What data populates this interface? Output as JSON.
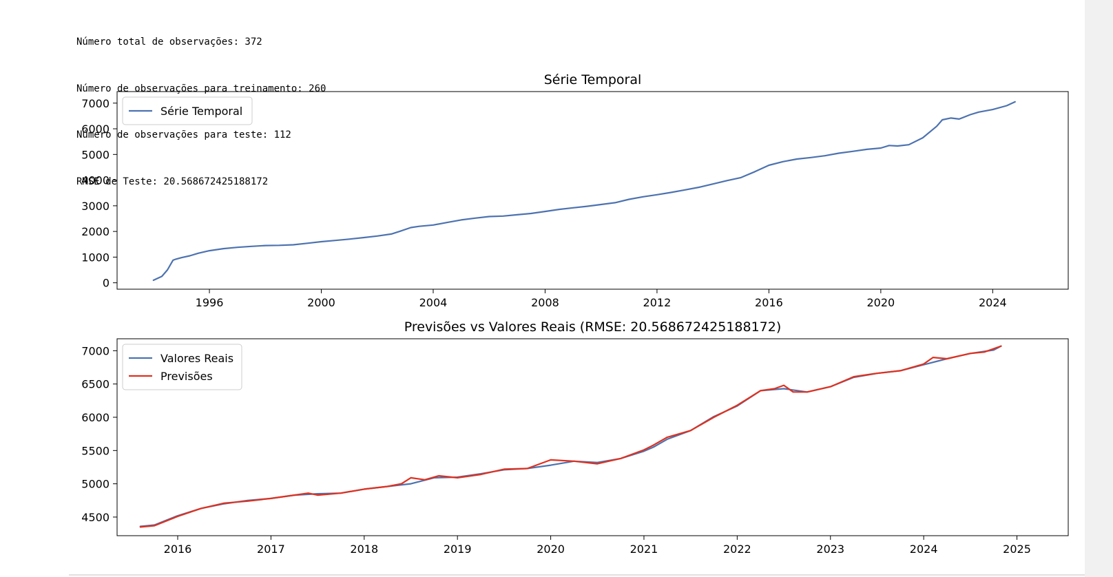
{
  "output_lines": [
    "Número total de observações: 372",
    "Número de observações para treinamento: 260",
    "Número de observações para teste: 112",
    "RMSE de Teste: 20.568672425188172"
  ],
  "colors": {
    "series_blue": "#4c72b0",
    "series_red": "#e0301e"
  },
  "chart_data": [
    {
      "type": "line",
      "title": "Série Temporal",
      "xlabel": "",
      "ylabel": "",
      "xlim": [
        1992.7,
        2026.7
      ],
      "ylim": [
        -250,
        7450
      ],
      "xticks": [
        1996,
        2000,
        2004,
        2008,
        2012,
        2016,
        2020,
        2024
      ],
      "yticks": [
        0,
        1000,
        2000,
        3000,
        4000,
        5000,
        6000,
        7000
      ],
      "legend": "top-left",
      "grid": false,
      "series": [
        {
          "name": "Série Temporal",
          "color": "#4c72b0",
          "x": [
            1994.0,
            1994.3,
            1994.5,
            1994.7,
            1994.8,
            1995.0,
            1995.3,
            1995.6,
            1996.0,
            1996.5,
            1997.0,
            1997.5,
            1998.0,
            1998.5,
            1999.0,
            1999.5,
            2000.0,
            2000.5,
            2001.0,
            2001.5,
            2002.0,
            2002.5,
            2002.8,
            2003.2,
            2003.5,
            2004.0,
            2004.5,
            2005.0,
            2005.5,
            2006.0,
            2006.5,
            2007.0,
            2007.5,
            2008.0,
            2008.5,
            2009.0,
            2009.5,
            2010.0,
            2010.5,
            2011.0,
            2011.5,
            2012.0,
            2012.5,
            2013.0,
            2013.5,
            2014.0,
            2014.5,
            2015.0,
            2015.5,
            2016.0,
            2016.5,
            2017.0,
            2017.5,
            2018.0,
            2018.5,
            2019.0,
            2019.5,
            2020.0,
            2020.3,
            2020.6,
            2021.0,
            2021.5,
            2022.0,
            2022.2,
            2022.5,
            2022.8,
            2023.2,
            2023.5,
            2024.0,
            2024.5,
            2024.8
          ],
          "y": [
            100,
            250,
            500,
            880,
            920,
            980,
            1050,
            1150,
            1250,
            1330,
            1380,
            1420,
            1450,
            1460,
            1480,
            1540,
            1600,
            1650,
            1700,
            1760,
            1820,
            1900,
            2000,
            2150,
            2200,
            2250,
            2350,
            2450,
            2520,
            2580,
            2600,
            2650,
            2700,
            2780,
            2860,
            2920,
            2980,
            3050,
            3120,
            3250,
            3350,
            3430,
            3520,
            3620,
            3720,
            3850,
            3980,
            4100,
            4330,
            4580,
            4720,
            4820,
            4880,
            4950,
            5050,
            5120,
            5200,
            5250,
            5350,
            5330,
            5380,
            5650,
            6100,
            6350,
            6420,
            6380,
            6550,
            6650,
            6750,
            6900,
            7050
          ]
        }
      ]
    },
    {
      "type": "line",
      "title": "Previsões vs Valores Reais (RMSE: 20.568672425188172)",
      "xlabel": "",
      "ylabel": "",
      "xlim": [
        2015.35,
        2025.55
      ],
      "ylim": [
        4220,
        7180
      ],
      "xticks": [
        2016,
        2017,
        2018,
        2019,
        2020,
        2021,
        2022,
        2023,
        2024,
        2025
      ],
      "yticks": [
        4500,
        5000,
        5500,
        6000,
        6500,
        7000
      ],
      "legend": "top-left",
      "grid": false,
      "series": [
        {
          "name": "Valores Reais",
          "color": "#4c72b0",
          "x": [
            2015.6,
            2015.75,
            2016.0,
            2016.25,
            2016.5,
            2016.75,
            2017.0,
            2017.25,
            2017.5,
            2017.75,
            2018.0,
            2018.25,
            2018.5,
            2018.75,
            2019.0,
            2019.25,
            2019.5,
            2019.75,
            2020.0,
            2020.25,
            2020.5,
            2020.75,
            2021.0,
            2021.1,
            2021.25,
            2021.5,
            2021.75,
            2022.0,
            2022.25,
            2022.5,
            2022.75,
            2023.0,
            2023.25,
            2023.5,
            2023.75,
            2024.0,
            2024.25,
            2024.5,
            2024.75,
            2024.83
          ],
          "y": [
            4360,
            4380,
            4520,
            4630,
            4700,
            4750,
            4780,
            4830,
            4850,
            4860,
            4920,
            4960,
            5000,
            5090,
            5100,
            5150,
            5210,
            5230,
            5280,
            5340,
            5320,
            5380,
            5490,
            5550,
            5670,
            5800,
            6010,
            6170,
            6400,
            6430,
            6380,
            6460,
            6600,
            6660,
            6700,
            6790,
            6880,
            6960,
            7010,
            7070
          ]
        },
        {
          "name": "Previsões",
          "color": "#e0301e",
          "x": [
            2015.6,
            2015.75,
            2016.0,
            2016.25,
            2016.5,
            2016.75,
            2017.0,
            2017.25,
            2017.4,
            2017.5,
            2017.75,
            2018.0,
            2018.25,
            2018.4,
            2018.5,
            2018.65,
            2018.8,
            2019.0,
            2019.25,
            2019.5,
            2019.75,
            2020.0,
            2020.25,
            2020.5,
            2020.75,
            2021.0,
            2021.1,
            2021.25,
            2021.5,
            2021.75,
            2022.0,
            2022.25,
            2022.4,
            2022.5,
            2022.6,
            2022.75,
            2023.0,
            2023.25,
            2023.5,
            2023.75,
            2024.0,
            2024.1,
            2024.25,
            2024.5,
            2024.65,
            2024.83
          ],
          "y": [
            4350,
            4370,
            4510,
            4630,
            4710,
            4740,
            4780,
            4830,
            4860,
            4830,
            4860,
            4920,
            4960,
            5000,
            5090,
            5060,
            5120,
            5090,
            5140,
            5220,
            5230,
            5360,
            5340,
            5300,
            5380,
            5510,
            5580,
            5700,
            5800,
            6000,
            6180,
            6400,
            6430,
            6480,
            6380,
            6380,
            6460,
            6610,
            6660,
            6700,
            6800,
            6900,
            6880,
            6960,
            6980,
            7070
          ]
        }
      ]
    }
  ]
}
